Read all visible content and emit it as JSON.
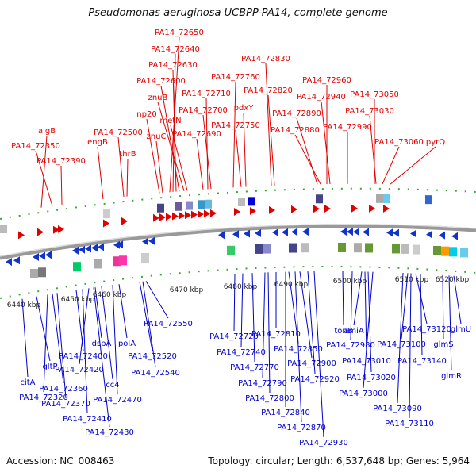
{
  "title": "Pseudomonas aeruginosa UCBPP-PA14, complete genome",
  "accession": "Accession: NC_008463",
  "topology": "Topology: circular; Length: 6,537,648 bp; Genes: 5,964",
  "colors": {
    "top_label": "#e00000",
    "bottom_label": "#0000cc",
    "tick": "#33aa33",
    "backbone": "#999999"
  },
  "scale_labels": [
    "6440 kbp",
    "6450 kbp",
    "6460 kbp",
    "6470 kbp",
    "6480 kbp",
    "6490 kbp",
    "6500 kbp",
    "6510 kbp",
    "6520 kbp"
  ],
  "top_genes": [
    "PA14_72650",
    "PA14_72640",
    "PA14_72630",
    "PA14_72600",
    "znuB",
    "PA14_72710",
    "PA14_72700",
    "metN",
    "np20",
    "znuC",
    "PA14_72690",
    "PA14_72760",
    "PA14_72750",
    "pdxY",
    "PA14_72830",
    "PA14_72820",
    "algB",
    "PA14_72350",
    "PA14_72390",
    "engB",
    "PA14_72500",
    "thrB",
    "PA14_72960",
    "PA14_72940",
    "PA14_72890",
    "PA14_72880",
    "PA14_72990",
    "PA14_73050",
    "PA14_73030",
    "PA14_73060",
    "pyrQ"
  ],
  "bottom_genes": [
    "citA",
    "gltP",
    "PA14_72320",
    "PA14_72360",
    "PA14_72370",
    "PA14_72400",
    "PA14_72410",
    "PA14_72420",
    "PA14_72430",
    "dsbA",
    "cc4",
    "polA",
    "PA14_72470",
    "PA14_72520",
    "PA14_72540",
    "PA14_72550",
    "PA14_72720",
    "PA14_72740",
    "PA14_72770",
    "PA14_72790",
    "PA14_72800",
    "PA14_72810",
    "PA14_72840",
    "PA14_72850",
    "PA14_72870",
    "PA14_72900",
    "PA14_72920",
    "PA14_72930",
    "tonB",
    "PA14_72980",
    "amiA",
    "PA14_73010",
    "PA14_73020",
    "PA14_73000",
    "PA14_73090",
    "PA14_73100",
    "PA14_73110",
    "PA14_73120",
    "PA14_73140",
    "glmS",
    "glmR",
    "glmU"
  ]
}
